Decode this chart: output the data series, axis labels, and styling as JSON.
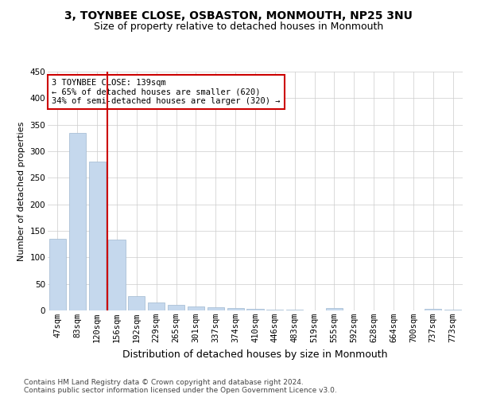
{
  "title1": "3, TOYNBEE CLOSE, OSBASTON, MONMOUTH, NP25 3NU",
  "title2": "Size of property relative to detached houses in Monmouth",
  "xlabel": "Distribution of detached houses by size in Monmouth",
  "ylabel": "Number of detached properties",
  "categories": [
    "47sqm",
    "83sqm",
    "120sqm",
    "156sqm",
    "192sqm",
    "229sqm",
    "265sqm",
    "301sqm",
    "337sqm",
    "374sqm",
    "410sqm",
    "446sqm",
    "483sqm",
    "519sqm",
    "555sqm",
    "592sqm",
    "628sqm",
    "664sqm",
    "700sqm",
    "737sqm",
    "773sqm"
  ],
  "values": [
    135,
    335,
    280,
    133,
    27,
    15,
    11,
    8,
    6,
    5,
    3,
    2,
    1,
    0,
    4,
    0,
    0,
    0,
    0,
    3,
    2
  ],
  "bar_color": "#c5d8ed",
  "bar_edge_color": "#a0b8d0",
  "red_line_x": 2.5,
  "annotation_text": "3 TOYNBEE CLOSE: 139sqm\n← 65% of detached houses are smaller (620)\n34% of semi-detached houses are larger (320) →",
  "annotation_box_color": "#ffffff",
  "annotation_box_edge_color": "#cc0000",
  "red_line_color": "#cc0000",
  "grid_color": "#cccccc",
  "ylim": [
    0,
    450
  ],
  "yticks": [
    0,
    50,
    100,
    150,
    200,
    250,
    300,
    350,
    400,
    450
  ],
  "footer1": "Contains HM Land Registry data © Crown copyright and database right 2024.",
  "footer2": "Contains public sector information licensed under the Open Government Licence v3.0.",
  "title1_fontsize": 10,
  "title2_fontsize": 9,
  "xlabel_fontsize": 9,
  "ylabel_fontsize": 8,
  "tick_fontsize": 7.5,
  "footer_fontsize": 6.5,
  "annot_fontsize": 7.5
}
